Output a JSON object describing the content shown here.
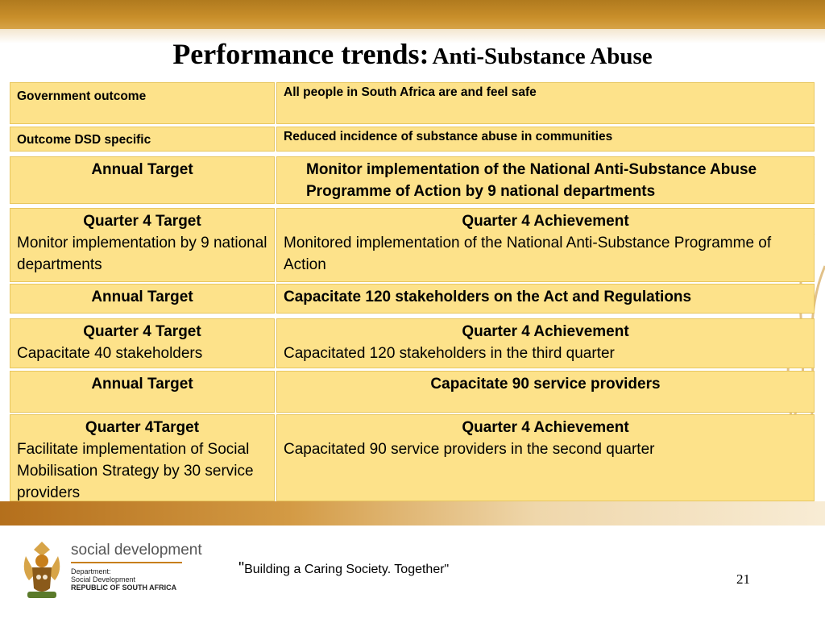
{
  "title": {
    "main": "Performance trends:",
    "sub": "Anti-Substance Abuse"
  },
  "rows": [
    {
      "left": "Government outcome",
      "right": "All people in South Africa are and feel safe"
    },
    {
      "left": "Outcome DSD specific",
      "right": "Reduced incidence of substance abuse in communities"
    },
    {
      "left": "Annual Target",
      "right": "Monitor implementation of the National Anti-Substance Abuse Programme of Action by 9 national departments"
    },
    {
      "left_head": "Quarter 4 Target",
      "left": "Monitor implementation by 9 national departments",
      "right_head": "Quarter 4  Achievement",
      "right": "Monitored implementation of the National Anti-Substance Programme of Action"
    },
    {
      "left": "Annual Target",
      "right": "Capacitate 120 stakeholders on the Act and Regulations"
    },
    {
      "left_head": "Quarter 4 Target",
      "left": "Capacitate 40 stakeholders",
      "right_head": "Quarter 4 Achievement",
      "right": "Capacitated 120 stakeholders in the third quarter"
    },
    {
      "left": "Annual Target",
      "right": "Capacitate 90 service providers"
    },
    {
      "left_head": "Quarter 4Target",
      "left": "Facilitate implementation of Social Mobilisation Strategy by 30 service providers",
      "right_head": "Quarter 4 Achievement",
      "right": "Capacitated 90 service providers in the second quarter"
    }
  ],
  "footer": {
    "brand": "social development",
    "dept_line1": "Department:",
    "dept_line2": "Social Development",
    "dept_line3": "REPUBLIC OF SOUTH AFRICA",
    "slogan_quote": "\"",
    "slogan": "Building a Caring Society. Together\"",
    "page_number": "21"
  },
  "colors": {
    "cell_fill": "#fde28a",
    "accent": "#c98f2a"
  }
}
